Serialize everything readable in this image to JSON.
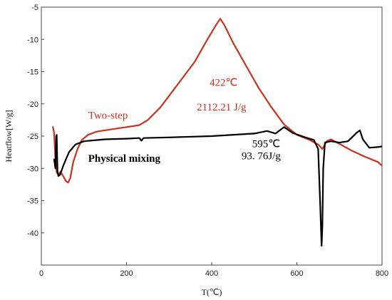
{
  "chart_data": {
    "type": "line",
    "title": "",
    "xlabel": "T(℃)",
    "ylabel": "Heatflow[W/g]",
    "xlim": [
      0,
      800
    ],
    "ylim": [
      -45,
      -5
    ],
    "x_ticks": [
      0,
      200,
      400,
      600,
      800
    ],
    "y_ticks": [
      -5,
      -10,
      -15,
      -20,
      -25,
      -30,
      -35,
      -40
    ],
    "grid": false,
    "series": [
      {
        "name": "Two-step",
        "color": "#c8321e",
        "points": [
          [
            27,
            -23.5
          ],
          [
            30,
            -24.5
          ],
          [
            33,
            -28.5
          ],
          [
            36,
            -30.6
          ],
          [
            40,
            -31.0
          ],
          [
            45,
            -30.5
          ],
          [
            52,
            -31.3
          ],
          [
            58,
            -32.0
          ],
          [
            63,
            -32.2
          ],
          [
            68,
            -31.5
          ],
          [
            75,
            -29.0
          ],
          [
            85,
            -27.0
          ],
          [
            95,
            -25.6
          ],
          [
            110,
            -24.8
          ],
          [
            130,
            -24.3
          ],
          [
            160,
            -24.0
          ],
          [
            200,
            -23.6
          ],
          [
            230,
            -23.3
          ],
          [
            250,
            -22.5
          ],
          [
            280,
            -20.5
          ],
          [
            320,
            -17.0
          ],
          [
            360,
            -13.5
          ],
          [
            390,
            -10.0
          ],
          [
            410,
            -7.8
          ],
          [
            420,
            -6.8
          ],
          [
            430,
            -7.8
          ],
          [
            450,
            -10.5
          ],
          [
            480,
            -14.0
          ],
          [
            510,
            -17.5
          ],
          [
            540,
            -20.5
          ],
          [
            570,
            -23.2
          ],
          [
            600,
            -24.8
          ],
          [
            630,
            -25.6
          ],
          [
            650,
            -26.3
          ],
          [
            660,
            -27.0
          ],
          [
            670,
            -25.8
          ],
          [
            680,
            -25.5
          ],
          [
            700,
            -26.2
          ],
          [
            730,
            -27.3
          ],
          [
            760,
            -28.2
          ],
          [
            790,
            -29.0
          ],
          [
            800,
            -29.6
          ]
        ]
      },
      {
        "name": "Physical mixing",
        "color": "#000000",
        "points": [
          [
            30,
            -28.5
          ],
          [
            33,
            -30.0
          ],
          [
            35,
            -25.0
          ],
          [
            36,
            -24.8
          ],
          [
            38,
            -30.5
          ],
          [
            40,
            -31.2
          ],
          [
            44,
            -31.0
          ],
          [
            52,
            -29.5
          ],
          [
            65,
            -27.5
          ],
          [
            80,
            -26.3
          ],
          [
            100,
            -25.8
          ],
          [
            150,
            -25.5
          ],
          [
            200,
            -25.4
          ],
          [
            230,
            -25.3
          ],
          [
            235,
            -25.7
          ],
          [
            240,
            -25.3
          ],
          [
            300,
            -25.2
          ],
          [
            400,
            -25.0
          ],
          [
            500,
            -24.6
          ],
          [
            530,
            -24.2
          ],
          [
            550,
            -24.6
          ],
          [
            570,
            -23.6
          ],
          [
            590,
            -24.5
          ],
          [
            620,
            -25.2
          ],
          [
            640,
            -25.6
          ],
          [
            650,
            -27.0
          ],
          [
            655,
            -36.0
          ],
          [
            658,
            -42.0
          ],
          [
            660,
            -39.0
          ],
          [
            662,
            -30.0
          ],
          [
            666,
            -26.0
          ],
          [
            680,
            -25.8
          ],
          [
            700,
            -26.0
          ],
          [
            720,
            -25.8
          ],
          [
            740,
            -24.5
          ],
          [
            748,
            -24.1
          ],
          [
            755,
            -25.5
          ],
          [
            770,
            -26.8
          ],
          [
            790,
            -26.7
          ],
          [
            800,
            -26.6
          ]
        ]
      }
    ],
    "annotations": [
      {
        "id": "two-step-label",
        "text": "Two-step",
        "color": "#c8321e",
        "x": 110,
        "y": -22.3,
        "style": "normal"
      },
      {
        "id": "peak-temp",
        "text": "422℃",
        "color": "#c8321e",
        "x": 395,
        "y": -17.2,
        "style": "normal"
      },
      {
        "id": "peak-enthalpy",
        "text": "2112.21  J/g",
        "color": "#c8321e",
        "x": 365,
        "y": -21.0,
        "style": "normal"
      },
      {
        "id": "physical-label",
        "text": "Physical mixing",
        "color": "#000000",
        "x": 110,
        "y": -29.0,
        "style": "bold"
      },
      {
        "id": "melt-temp",
        "text": "595℃",
        "color": "#000000",
        "x": 495,
        "y": -26.7,
        "style": "normal"
      },
      {
        "id": "melt-enthalpy",
        "text": "93. 76J/g",
        "color": "#000000",
        "x": 470,
        "y": -28.6,
        "style": "normal"
      }
    ]
  }
}
